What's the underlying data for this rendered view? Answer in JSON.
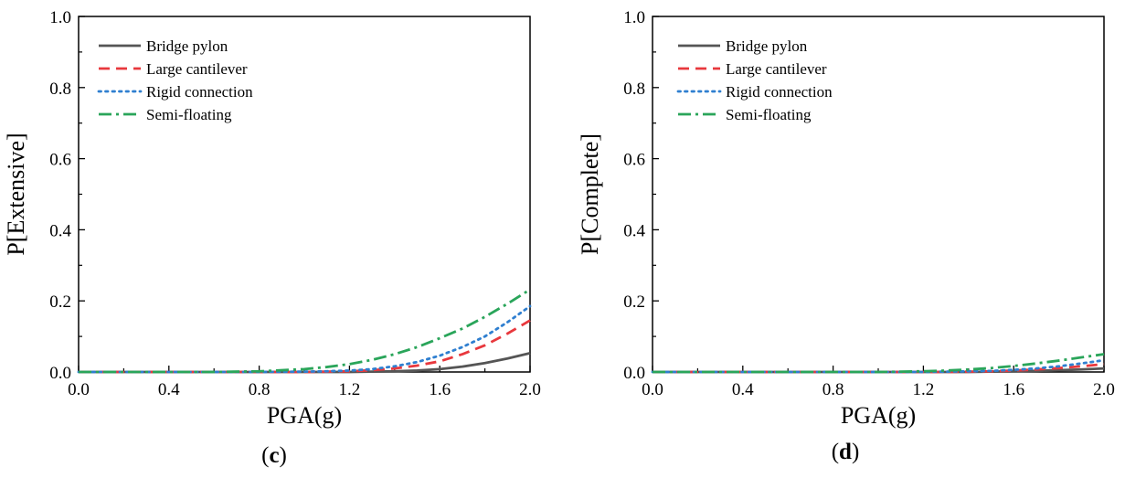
{
  "chart_data": [
    {
      "type": "line",
      "panel_label": "c",
      "xlabel": "PGA(g)",
      "ylabel": "P[Extensive]",
      "xlim": [
        0.0,
        2.0
      ],
      "ylim": [
        0.0,
        1.0
      ],
      "xticks": [
        "0.0",
        "0.4",
        "0.8",
        "1.2",
        "1.6",
        "2.0"
      ],
      "yticks": [
        "0.0",
        "0.2",
        "0.4",
        "0.6",
        "0.8",
        "1.0"
      ],
      "grid": false,
      "legend_position": "top-left",
      "x": [
        0.0,
        0.2,
        0.4,
        0.6,
        0.8,
        1.0,
        1.1,
        1.2,
        1.3,
        1.4,
        1.5,
        1.6,
        1.7,
        1.8,
        1.9,
        2.0
      ],
      "series": [
        {
          "name": "Bridge pylon",
          "color": "#555555",
          "style": "solid",
          "values": [
            0,
            0,
            0,
            0,
            0,
            0,
            0,
            0,
            0.001,
            0.002,
            0.004,
            0.008,
            0.015,
            0.025,
            0.038,
            0.053
          ]
        },
        {
          "name": "Large cantilever",
          "color": "#e8383d",
          "style": "dashed",
          "values": [
            0,
            0,
            0,
            0,
            0,
            0,
            0.001,
            0.002,
            0.005,
            0.01,
            0.018,
            0.03,
            0.05,
            0.075,
            0.108,
            0.145
          ]
        },
        {
          "name": "Rigid connection",
          "color": "#2f7fd0",
          "style": "dotted",
          "values": [
            0,
            0,
            0,
            0,
            0,
            0.001,
            0.002,
            0.004,
            0.008,
            0.016,
            0.028,
            0.046,
            0.07,
            0.1,
            0.14,
            0.185
          ]
        },
        {
          "name": "Semi-floating",
          "color": "#2aa55a",
          "style": "dashdot",
          "values": [
            0,
            0,
            0,
            0,
            0.002,
            0.008,
            0.014,
            0.022,
            0.034,
            0.05,
            0.07,
            0.095,
            0.122,
            0.155,
            0.192,
            0.232
          ]
        }
      ]
    },
    {
      "type": "line",
      "panel_label": "d",
      "xlabel": "PGA(g)",
      "ylabel": "P[Complete]",
      "xlim": [
        0.0,
        2.0
      ],
      "ylim": [
        0.0,
        1.0
      ],
      "xticks": [
        "0.0",
        "0.4",
        "0.8",
        "1.2",
        "1.6",
        "2.0"
      ],
      "yticks": [
        "0.0",
        "0.2",
        "0.4",
        "0.6",
        "0.8",
        "1.0"
      ],
      "grid": false,
      "legend_position": "top-left",
      "x": [
        0.0,
        0.2,
        0.4,
        0.6,
        0.8,
        1.0,
        1.1,
        1.2,
        1.3,
        1.4,
        1.5,
        1.6,
        1.7,
        1.8,
        1.9,
        2.0
      ],
      "series": [
        {
          "name": "Bridge pylon",
          "color": "#555555",
          "style": "solid",
          "values": [
            0,
            0,
            0,
            0,
            0,
            0,
            0,
            0,
            0,
            0,
            0.001,
            0.002,
            0.003,
            0.005,
            0.007,
            0.01
          ]
        },
        {
          "name": "Large cantilever",
          "color": "#e8383d",
          "style": "dashed",
          "values": [
            0,
            0,
            0,
            0,
            0,
            0,
            0,
            0,
            0,
            0.001,
            0.002,
            0.004,
            0.007,
            0.011,
            0.016,
            0.022
          ]
        },
        {
          "name": "Rigid connection",
          "color": "#2f7fd0",
          "style": "dotted",
          "values": [
            0,
            0,
            0,
            0,
            0,
            0,
            0,
            0,
            0.001,
            0.002,
            0.003,
            0.006,
            0.01,
            0.016,
            0.024,
            0.033
          ]
        },
        {
          "name": "Semi-floating",
          "color": "#2aa55a",
          "style": "dashdot",
          "values": [
            0,
            0,
            0,
            0,
            0,
            0,
            0.001,
            0.002,
            0.004,
            0.007,
            0.011,
            0.017,
            0.024,
            0.032,
            0.041,
            0.05
          ]
        }
      ]
    }
  ]
}
